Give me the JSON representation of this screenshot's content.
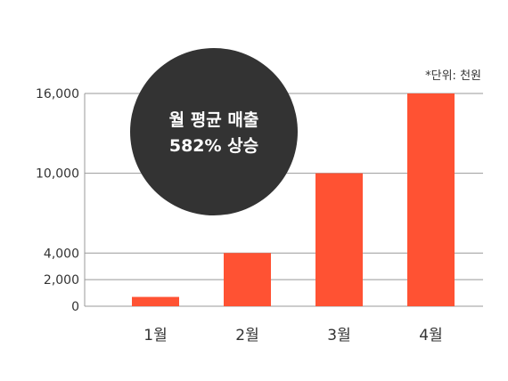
{
  "chart_data": {
    "type": "bar",
    "categories": [
      "1월",
      "2월",
      "3월",
      "4월"
    ],
    "values": [
      700,
      4000,
      10000,
      16000
    ],
    "ylim": [
      0,
      16000
    ],
    "yticks": [
      0,
      2000,
      4000,
      10000,
      16000
    ],
    "ytick_labels": [
      "0",
      "2,000",
      "4,000",
      "10,000",
      "16,000"
    ],
    "unit_note": "*단위: 천원",
    "grid": true,
    "bar_color": "#ff5233",
    "callout": {
      "line1": "월 평균 매출",
      "line2": "582% 상승",
      "color": "#333333"
    }
  }
}
